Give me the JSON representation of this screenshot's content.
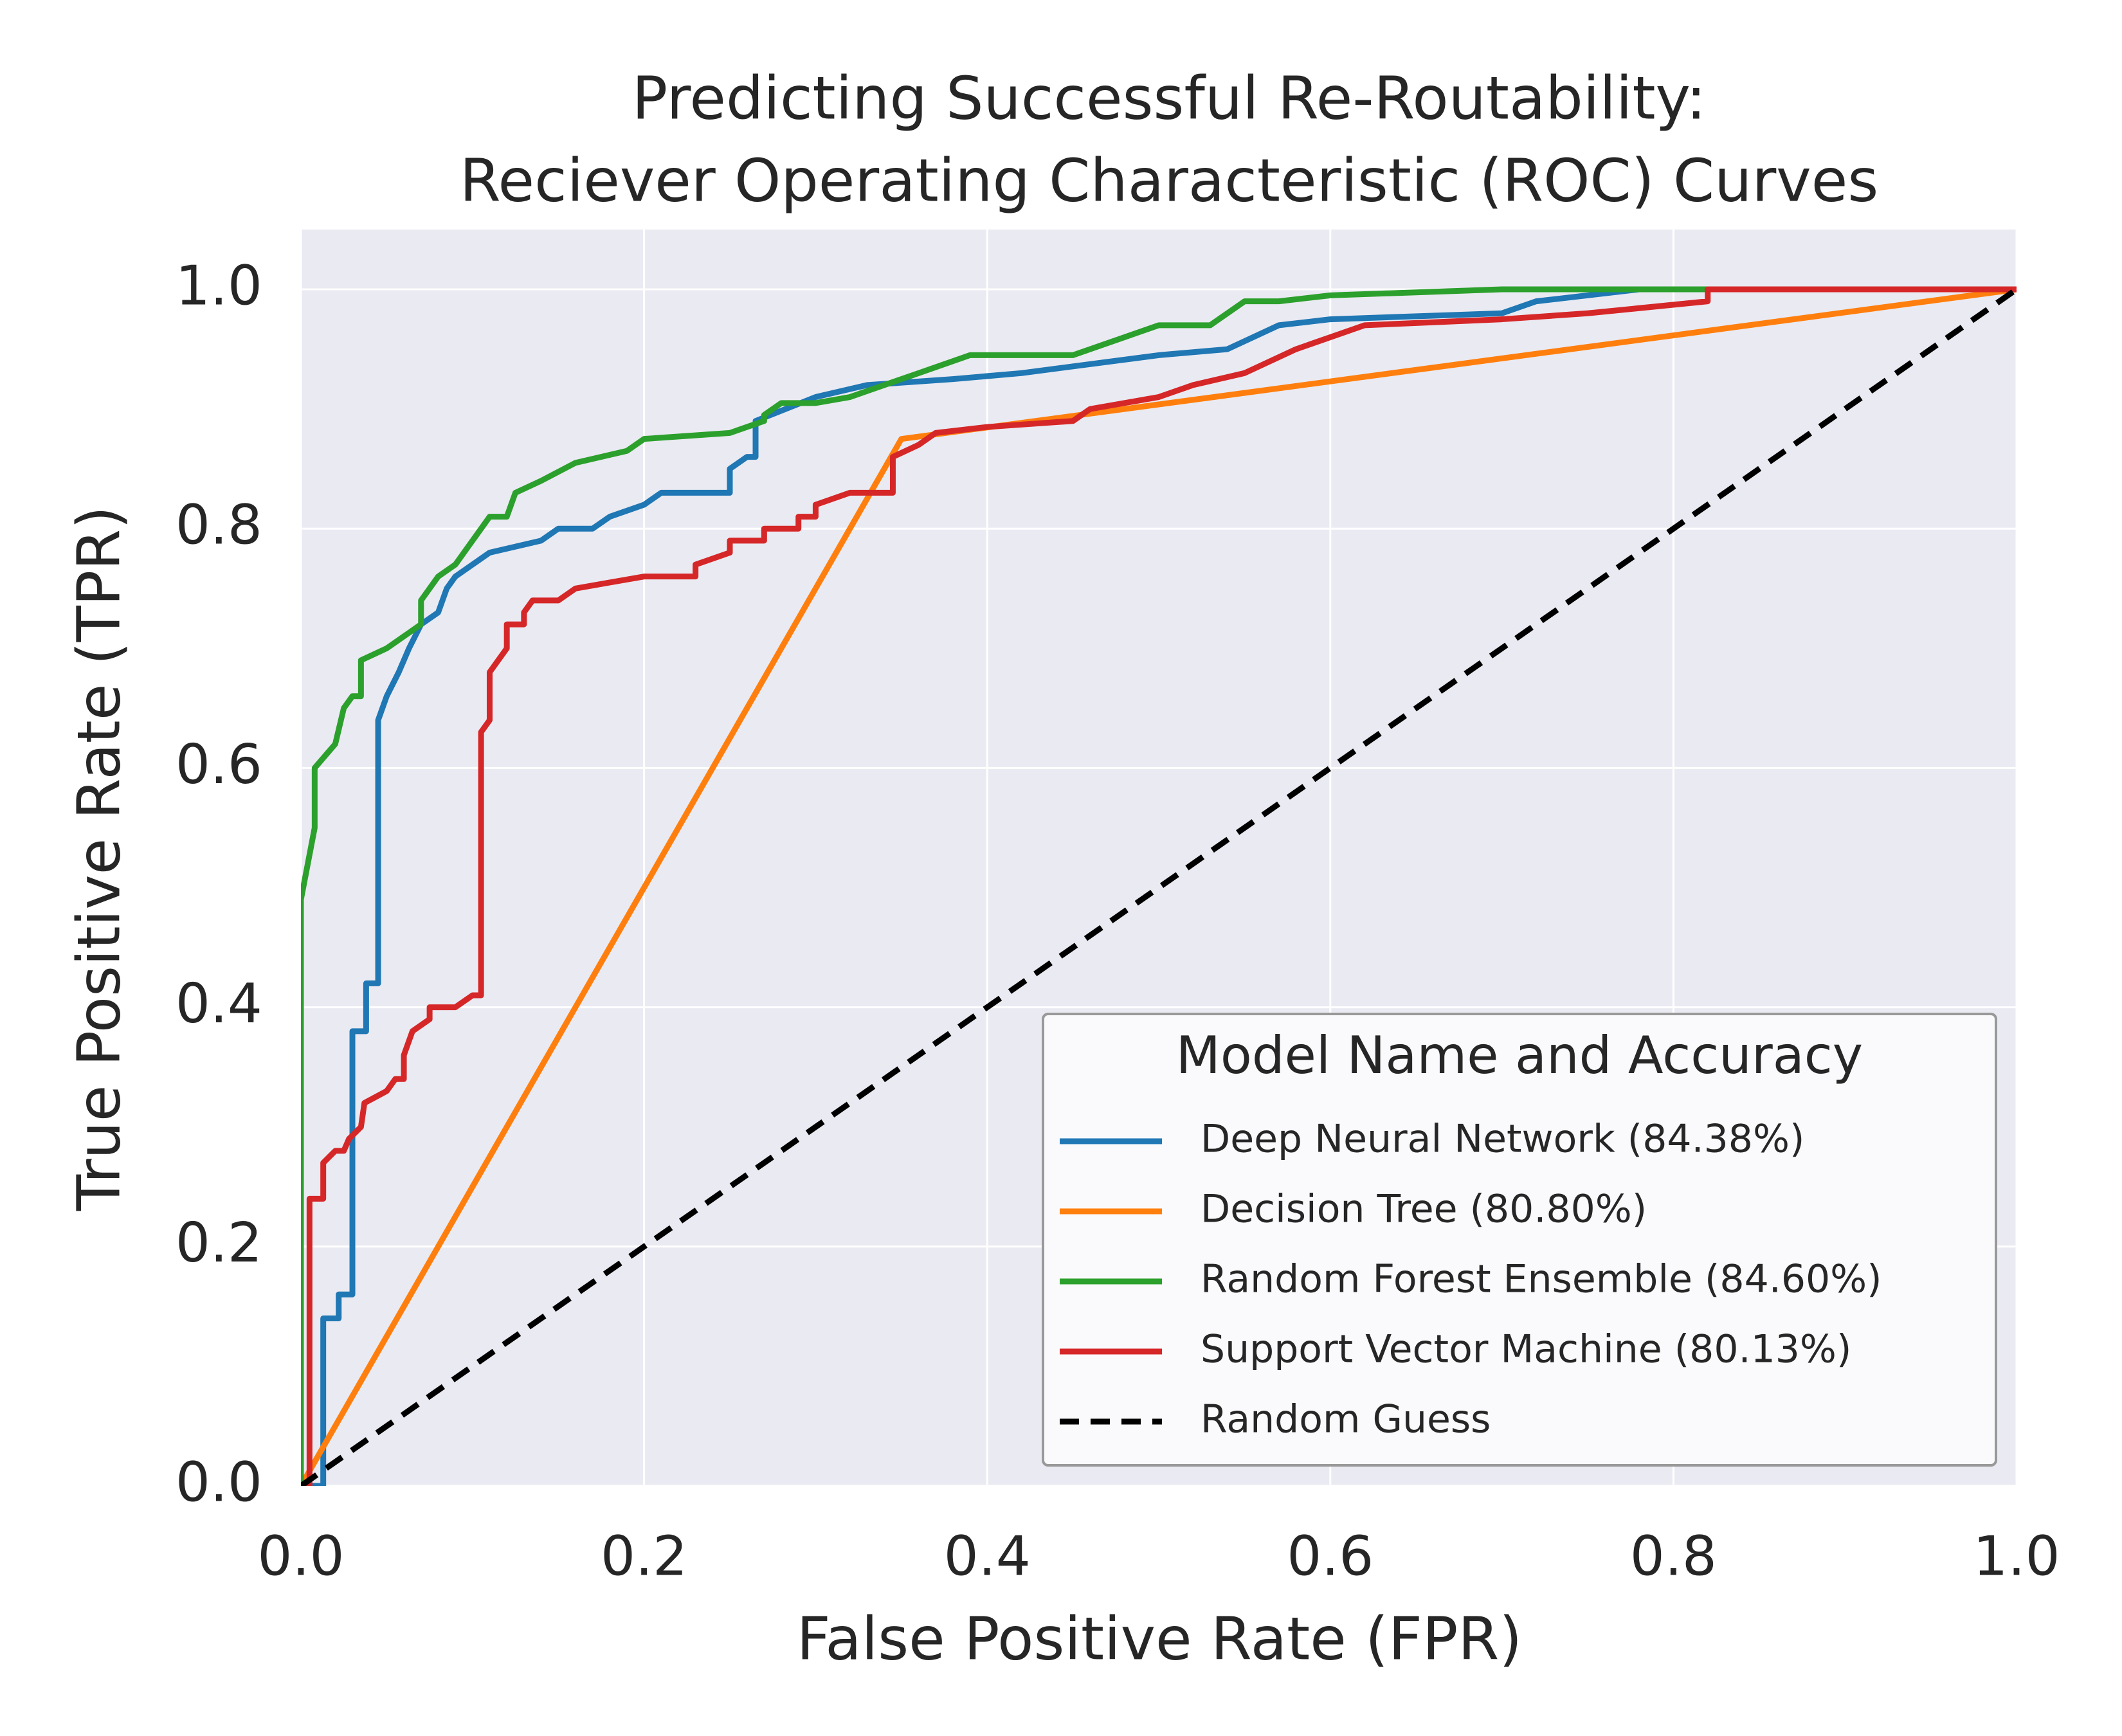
{
  "chart_data": {
    "type": "line",
    "title": [
      "Predicting Successful Re-Routability:",
      "Reciever Operating Characteristic (ROC) Curves"
    ],
    "xlabel": "False Positive Rate (FPR)",
    "ylabel": "True Positive Rate (TPR)",
    "xlim": [
      0,
      1
    ],
    "ylim": [
      0,
      1.05
    ],
    "xticks": [
      {
        "value": 0,
        "label": "0.0"
      },
      0.2,
      0.4,
      0.6,
      0.8,
      {
        "value": 1,
        "label": "1.0"
      }
    ],
    "yticks": [
      {
        "value": 0,
        "label": "0.0"
      },
      0.2,
      0.4,
      0.6,
      0.8,
      {
        "value": 1,
        "label": "1.0"
      }
    ],
    "grid": true,
    "legend": {
      "title": "Model Name and Accuracy",
      "position": "lower right"
    },
    "series": [
      {
        "name": "Deep Neural Network (84.38%)",
        "color": "#1f77b4",
        "x": [
          0,
          0.013,
          0.013,
          0.022,
          0.022,
          0.03,
          0.03,
          0.038,
          0.038,
          0.045,
          0.045,
          0.05,
          0.057,
          0.063,
          0.07,
          0.08,
          0.085,
          0.09,
          0.1,
          0.11,
          0.14,
          0.15,
          0.17,
          0.18,
          0.2,
          0.21,
          0.25,
          0.25,
          0.26,
          0.265,
          0.265,
          0.3,
          0.33,
          0.38,
          0.42,
          0.5,
          0.54,
          0.57,
          0.6,
          0.7,
          0.72,
          0.78,
          0.85,
          1
        ],
        "values": [
          0,
          0,
          0.14,
          0.14,
          0.16,
          0.16,
          0.38,
          0.38,
          0.42,
          0.42,
          0.64,
          0.66,
          0.68,
          0.7,
          0.72,
          0.73,
          0.75,
          0.76,
          0.77,
          0.78,
          0.79,
          0.8,
          0.8,
          0.81,
          0.82,
          0.83,
          0.83,
          0.85,
          0.86,
          0.86,
          0.89,
          0.91,
          0.92,
          0.925,
          0.93,
          0.945,
          0.95,
          0.97,
          0.975,
          0.98,
          0.99,
          1,
          1,
          1
        ]
      },
      {
        "name": "Decision Tree (80.80%)",
        "color": "#ff7f0e",
        "x": [
          0,
          0.35,
          1
        ],
        "values": [
          0,
          0.875,
          1
        ]
      },
      {
        "name": "Random Forest Ensemble (84.60%)",
        "color": "#2ca02c",
        "x": [
          0,
          0,
          0.008,
          0.008,
          0.02,
          0.025,
          0.03,
          0.035,
          0.035,
          0.05,
          0.06,
          0.07,
          0.07,
          0.08,
          0.09,
          0.1,
          0.11,
          0.12,
          0.125,
          0.14,
          0.16,
          0.19,
          0.2,
          0.25,
          0.27,
          0.27,
          0.28,
          0.3,
          0.32,
          0.34,
          0.36,
          0.39,
          0.45,
          0.48,
          0.5,
          0.53,
          0.55,
          0.57,
          0.6,
          0.7,
          0.72,
          1
        ],
        "values": [
          0,
          0.49,
          0.55,
          0.6,
          0.62,
          0.65,
          0.66,
          0.66,
          0.69,
          0.7,
          0.71,
          0.72,
          0.74,
          0.76,
          0.77,
          0.79,
          0.81,
          0.81,
          0.83,
          0.84,
          0.855,
          0.865,
          0.875,
          0.88,
          0.89,
          0.895,
          0.905,
          0.905,
          0.91,
          0.92,
          0.93,
          0.945,
          0.945,
          0.96,
          0.97,
          0.97,
          0.99,
          0.99,
          0.995,
          1,
          1,
          1
        ]
      },
      {
        "name": "Support Vector Machine (80.13%)",
        "color": "#d62728",
        "x": [
          0,
          0.005,
          0.005,
          0.013,
          0.013,
          0.02,
          0.025,
          0.028,
          0.035,
          0.037,
          0.05,
          0.055,
          0.06,
          0.06,
          0.065,
          0.075,
          0.075,
          0.09,
          0.1,
          0.105,
          0.105,
          0.11,
          0.11,
          0.12,
          0.12,
          0.13,
          0.13,
          0.135,
          0.15,
          0.16,
          0.18,
          0.2,
          0.23,
          0.23,
          0.25,
          0.25,
          0.27,
          0.27,
          0.29,
          0.29,
          0.3,
          0.3,
          0.32,
          0.345,
          0.345,
          0.36,
          0.37,
          0.4,
          0.45,
          0.46,
          0.5,
          0.52,
          0.55,
          0.58,
          0.62,
          0.7,
          0.75,
          0.82,
          0.82,
          1
        ],
        "values": [
          0,
          0,
          0.24,
          0.24,
          0.27,
          0.28,
          0.28,
          0.29,
          0.3,
          0.32,
          0.33,
          0.34,
          0.34,
          0.36,
          0.38,
          0.39,
          0.4,
          0.4,
          0.41,
          0.41,
          0.63,
          0.64,
          0.68,
          0.7,
          0.72,
          0.72,
          0.73,
          0.74,
          0.74,
          0.75,
          0.755,
          0.76,
          0.76,
          0.77,
          0.78,
          0.79,
          0.79,
          0.8,
          0.8,
          0.81,
          0.81,
          0.82,
          0.83,
          0.83,
          0.86,
          0.87,
          0.88,
          0.885,
          0.89,
          0.9,
          0.91,
          0.92,
          0.93,
          0.95,
          0.97,
          0.975,
          0.98,
          0.99,
          1,
          1
        ]
      },
      {
        "name": "Random Guess",
        "color": "#000000",
        "dashed": true,
        "x": [
          0,
          1
        ],
        "values": [
          0,
          1
        ]
      }
    ]
  }
}
